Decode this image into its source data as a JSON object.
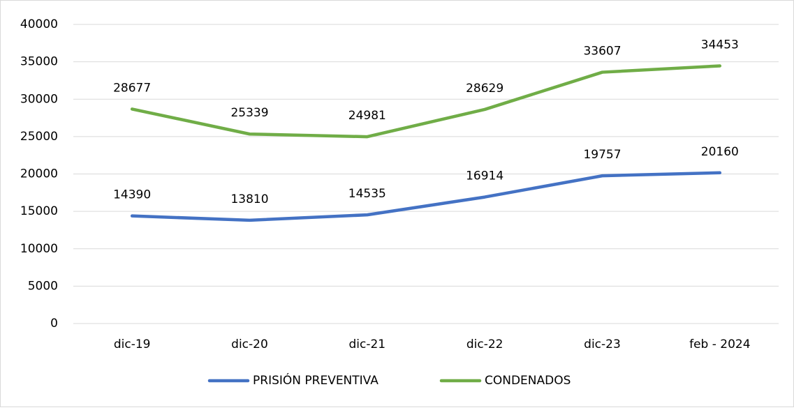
{
  "chart_data": {
    "type": "line",
    "categories": [
      "dic-19",
      "dic-20",
      "dic-21",
      "dic-22",
      "dic-23",
      "feb - 2024"
    ],
    "series": [
      {
        "name": "PRISIÓN PREVENTIVA",
        "color": "#4472c4",
        "values": [
          14390,
          13810,
          14535,
          16914,
          19757,
          20160
        ]
      },
      {
        "name": "CONDENADOS",
        "color": "#70ad47",
        "values": [
          28677,
          25339,
          24981,
          28629,
          33607,
          34453
        ]
      }
    ],
    "ylim": [
      0,
      40000
    ],
    "yticks": [
      0,
      5000,
      10000,
      15000,
      20000,
      25000,
      30000,
      35000,
      40000
    ],
    "grid": true,
    "legend": "bottom"
  }
}
